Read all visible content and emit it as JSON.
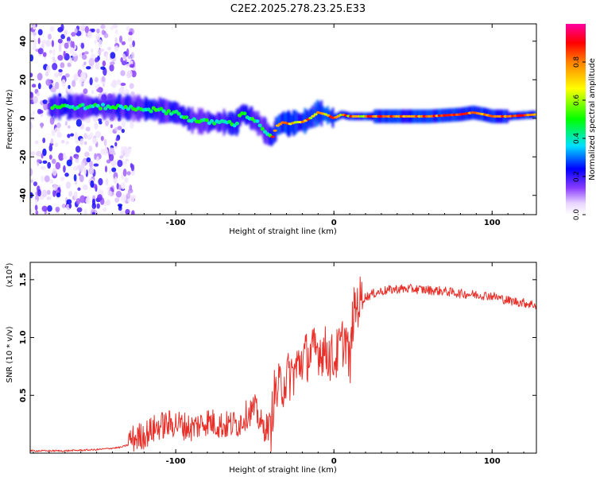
{
  "title": "C2E2.2025.278.23.25.E33",
  "chart_data": [
    {
      "type": "heatmap",
      "name": "spectrogram",
      "xlabel": "Height of straight line (km)",
      "ylabel": "Frequency (Hz)",
      "xlim": [
        -192,
        128
      ],
      "ylim": [
        -50,
        49
      ],
      "xticks": [
        -100,
        0,
        100
      ],
      "yticks": [
        -40,
        -20,
        0,
        20,
        40
      ],
      "ridge": {
        "x": [
          -172,
          -160,
          -140,
          -120,
          -100,
          -90,
          -80,
          -70,
          -62,
          -58,
          -52,
          -46,
          -42,
          -39,
          -36,
          -32,
          -28,
          -24,
          -20,
          -15,
          -10,
          -5,
          0,
          5,
          10,
          20,
          40,
          60,
          80,
          88,
          95,
          100,
          110,
          128
        ],
        "y": [
          6,
          6,
          6,
          5,
          3,
          -1,
          -2,
          -2,
          -3,
          3,
          0,
          -4,
          -8,
          -10,
          -4,
          -2,
          -3,
          -2,
          -2,
          0,
          3,
          2,
          0,
          2,
          1,
          1,
          1,
          1,
          2,
          3,
          2,
          1,
          1,
          2
        ]
      },
      "colorbar": {
        "label": "Normalized spectral amplitude",
        "ticks": [
          "0.0",
          "0.2",
          "0.4",
          "0.6",
          "0.8"
        ],
        "tick_values": [
          0.0,
          0.2,
          0.4,
          0.6,
          0.8
        ],
        "range": [
          0,
          1
        ],
        "stops": [
          {
            "v": 0.0,
            "color": "#ffffff"
          },
          {
            "v": 0.06,
            "color": "#e8d4ff"
          },
          {
            "v": 0.14,
            "color": "#8a3cff"
          },
          {
            "v": 0.24,
            "color": "#0000ff"
          },
          {
            "v": 0.36,
            "color": "#00e0ff"
          },
          {
            "v": 0.5,
            "color": "#00ff00"
          },
          {
            "v": 0.66,
            "color": "#ffff00"
          },
          {
            "v": 0.8,
            "color": "#ff8000"
          },
          {
            "v": 0.9,
            "color": "#ff0000"
          },
          {
            "v": 1.0,
            "color": "#ff00a0"
          }
        ]
      }
    },
    {
      "type": "line",
      "name": "snr",
      "xlabel": "Height of straight line (km)",
      "ylabel": "SNR (10 * v/v)",
      "ylabel_scale": "(x10",
      "ylabel_scale_exp": "4",
      "ylabel_scale_close": ")",
      "xlim": [
        -192,
        128
      ],
      "ylim": [
        0.0,
        1.65
      ],
      "xticks": [
        -100,
        0,
        100
      ],
      "yticks": [
        0.5,
        1.0,
        1.5
      ],
      "ytick_labels": [
        "0.5",
        "1.0",
        "1.5"
      ],
      "line_color": "#e8302a",
      "series": {
        "x": [
          -192,
          -170,
          -150,
          -135,
          -128,
          -120,
          -110,
          -100,
          -90,
          -80,
          -70,
          -60,
          -55,
          -50,
          -45,
          -40,
          -38,
          -35,
          -30,
          -25,
          -20,
          -15,
          -10,
          -5,
          0,
          5,
          8,
          10,
          12,
          15,
          20,
          25,
          30,
          40,
          50,
          60,
          70,
          80,
          90,
          100,
          110,
          120,
          128
        ],
        "y": [
          0.02,
          0.02,
          0.03,
          0.05,
          0.08,
          0.12,
          0.2,
          0.22,
          0.18,
          0.24,
          0.2,
          0.22,
          0.3,
          0.35,
          0.18,
          0.2,
          0.5,
          0.55,
          0.65,
          0.7,
          0.82,
          0.85,
          0.9,
          0.88,
          0.8,
          0.95,
          1.0,
          0.72,
          1.18,
          1.3,
          1.35,
          1.38,
          1.4,
          1.42,
          1.42,
          1.41,
          1.4,
          1.38,
          1.37,
          1.36,
          1.32,
          1.3,
          1.28
        ]
      }
    }
  ]
}
